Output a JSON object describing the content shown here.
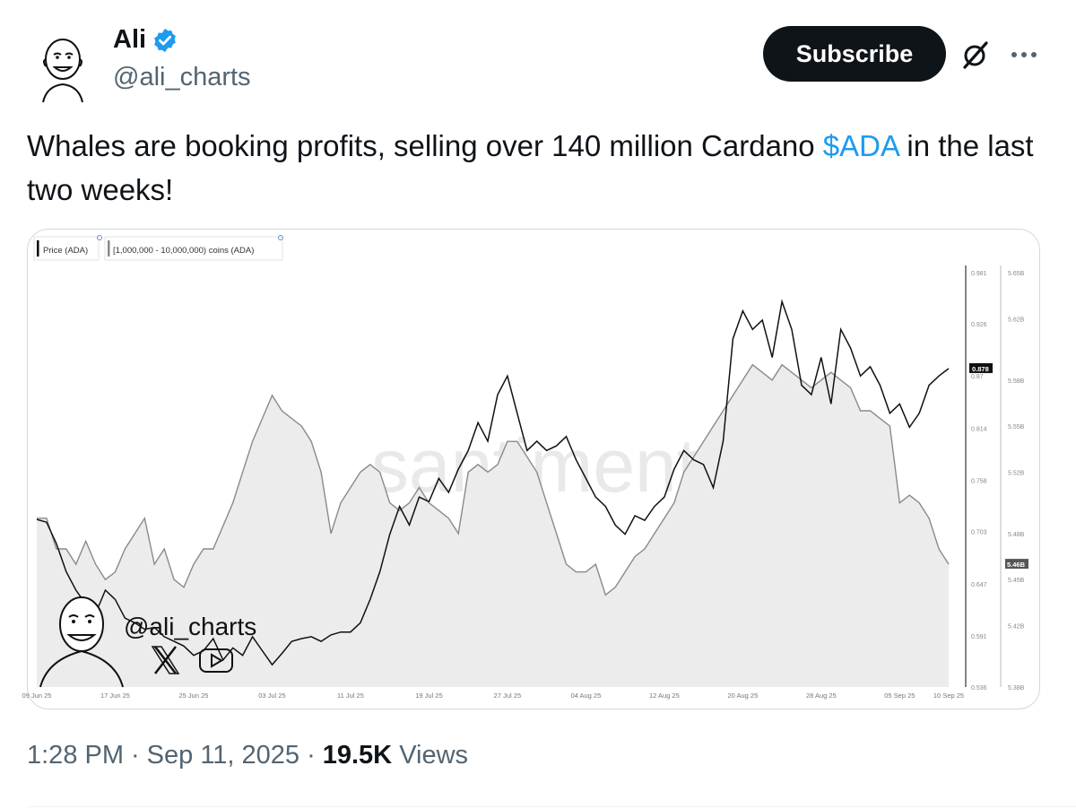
{
  "author": {
    "display_name": "Ali",
    "handle": "@ali_charts",
    "verified": true
  },
  "actions": {
    "subscribe_label": "Subscribe",
    "grok_icon": "slashed-circle-icon",
    "more_icon": "more-dots-icon"
  },
  "tweet": {
    "text_before": "Whales are booking profits, selling over 140 million Cardano ",
    "cashtag": "$ADA",
    "text_after": " in the last two weeks!",
    "time": "1:28 PM",
    "date": "Sep 11, 2025",
    "views_count": "19.5K",
    "views_label": "Views",
    "separator": "·"
  },
  "chart_data": {
    "type": "line",
    "watermark": "santiment",
    "overlay_handle": "@ali_charts",
    "legend": [
      {
        "name": "Price (ADA)",
        "color": "#000000"
      },
      {
        "name": "[1,000,000 - 10,000,000) coins (ADA)",
        "color": "#888888"
      }
    ],
    "x_ticks": [
      "09 Jun 25",
      "17 Jun 25",
      "25 Jun 25",
      "03 Jul 25",
      "11 Jul 25",
      "19 Jul 25",
      "27 Jul 25",
      "04 Aug 25",
      "12 Aug 25",
      "20 Aug 25",
      "28 Aug 25",
      "05 Sep 25",
      "10 Sep 25"
    ],
    "x_range_days": [
      0,
      93
    ],
    "y_left": {
      "ticks": [
        "0.981",
        "0.926",
        "0.87",
        "0.814",
        "0.758",
        "0.703",
        "0.647",
        "0.591",
        "0.536"
      ],
      "range": [
        0.536,
        0.981
      ],
      "current": "0.878"
    },
    "y_right": {
      "ticks": [
        "5.65B",
        "5.62B",
        "5.58B",
        "5.55B",
        "5.52B",
        "5.48B",
        "5.45B",
        "5.42B",
        "5.38B"
      ],
      "range": [
        5.38,
        5.65
      ],
      "current": "5.46B"
    },
    "series": [
      {
        "name": "Price (ADA)",
        "color": "#111111",
        "points": [
          [
            0,
            0.716
          ],
          [
            1,
            0.713
          ],
          [
            2,
            0.69
          ],
          [
            3,
            0.66
          ],
          [
            4,
            0.64
          ],
          [
            5,
            0.625
          ],
          [
            6,
            0.615
          ],
          [
            7,
            0.64
          ],
          [
            8,
            0.63
          ],
          [
            9,
            0.61
          ],
          [
            10,
            0.605
          ],
          [
            11,
            0.598
          ],
          [
            12,
            0.6
          ],
          [
            13,
            0.59
          ],
          [
            14,
            0.585
          ],
          [
            15,
            0.58
          ],
          [
            16,
            0.57
          ],
          [
            17,
            0.575
          ],
          [
            18,
            0.588
          ],
          [
            19,
            0.565
          ],
          [
            20,
            0.578
          ],
          [
            21,
            0.57
          ],
          [
            22,
            0.59
          ],
          [
            23,
            0.575
          ],
          [
            24,
            0.56
          ],
          [
            25,
            0.572
          ],
          [
            26,
            0.585
          ],
          [
            27,
            0.588
          ],
          [
            28,
            0.59
          ],
          [
            29,
            0.585
          ],
          [
            30,
            0.592
          ],
          [
            31,
            0.595
          ],
          [
            32,
            0.595
          ],
          [
            33,
            0.605
          ],
          [
            34,
            0.63
          ],
          [
            35,
            0.66
          ],
          [
            36,
            0.7
          ],
          [
            37,
            0.73
          ],
          [
            38,
            0.71
          ],
          [
            39,
            0.74
          ],
          [
            40,
            0.735
          ],
          [
            41,
            0.76
          ],
          [
            42,
            0.745
          ],
          [
            43,
            0.77
          ],
          [
            44,
            0.79
          ],
          [
            45,
            0.82
          ],
          [
            46,
            0.8
          ],
          [
            47,
            0.85
          ],
          [
            48,
            0.87
          ],
          [
            49,
            0.83
          ],
          [
            50,
            0.79
          ],
          [
            51,
            0.8
          ],
          [
            52,
            0.79
          ],
          [
            53,
            0.795
          ],
          [
            54,
            0.805
          ],
          [
            55,
            0.78
          ],
          [
            56,
            0.76
          ],
          [
            57,
            0.74
          ],
          [
            58,
            0.73
          ],
          [
            59,
            0.71
          ],
          [
            60,
            0.7
          ],
          [
            61,
            0.72
          ],
          [
            62,
            0.715
          ],
          [
            63,
            0.73
          ],
          [
            64,
            0.74
          ],
          [
            65,
            0.77
          ],
          [
            66,
            0.79
          ],
          [
            67,
            0.78
          ],
          [
            68,
            0.775
          ],
          [
            69,
            0.75
          ],
          [
            70,
            0.8
          ],
          [
            71,
            0.91
          ],
          [
            72,
            0.94
          ],
          [
            73,
            0.92
          ],
          [
            74,
            0.93
          ],
          [
            75,
            0.89
          ],
          [
            76,
            0.95
          ],
          [
            77,
            0.92
          ],
          [
            78,
            0.86
          ],
          [
            79,
            0.85
          ],
          [
            80,
            0.89
          ],
          [
            81,
            0.84
          ],
          [
            82,
            0.92
          ],
          [
            83,
            0.9
          ],
          [
            84,
            0.87
          ],
          [
            85,
            0.88
          ],
          [
            86,
            0.86
          ],
          [
            87,
            0.83
          ],
          [
            88,
            0.84
          ],
          [
            89,
            0.815
          ],
          [
            90,
            0.83
          ],
          [
            91,
            0.86
          ],
          [
            92,
            0.87
          ],
          [
            93,
            0.878
          ]
        ]
      },
      {
        "name": "[1,000,000 - 10,000,000) coins (ADA)",
        "color": "#8a8a8a",
        "points": [
          [
            0,
            5.49
          ],
          [
            1,
            5.49
          ],
          [
            2,
            5.47
          ],
          [
            3,
            5.47
          ],
          [
            4,
            5.46
          ],
          [
            5,
            5.475
          ],
          [
            6,
            5.46
          ],
          [
            7,
            5.45
          ],
          [
            8,
            5.455
          ],
          [
            9,
            5.47
          ],
          [
            10,
            5.48
          ],
          [
            11,
            5.49
          ],
          [
            12,
            5.46
          ],
          [
            13,
            5.47
          ],
          [
            14,
            5.45
          ],
          [
            15,
            5.445
          ],
          [
            16,
            5.46
          ],
          [
            17,
            5.47
          ],
          [
            18,
            5.47
          ],
          [
            19,
            5.485
          ],
          [
            20,
            5.5
          ],
          [
            21,
            5.52
          ],
          [
            22,
            5.54
          ],
          [
            23,
            5.555
          ],
          [
            24,
            5.57
          ],
          [
            25,
            5.56
          ],
          [
            26,
            5.555
          ],
          [
            27,
            5.55
          ],
          [
            28,
            5.54
          ],
          [
            29,
            5.52
          ],
          [
            30,
            5.48
          ],
          [
            31,
            5.5
          ],
          [
            32,
            5.51
          ],
          [
            33,
            5.52
          ],
          [
            34,
            5.525
          ],
          [
            35,
            5.52
          ],
          [
            36,
            5.5
          ],
          [
            37,
            5.495
          ],
          [
            38,
            5.5
          ],
          [
            39,
            5.51
          ],
          [
            40,
            5.5
          ],
          [
            41,
            5.495
          ],
          [
            42,
            5.49
          ],
          [
            43,
            5.48
          ],
          [
            44,
            5.52
          ],
          [
            45,
            5.525
          ],
          [
            46,
            5.52
          ],
          [
            47,
            5.525
          ],
          [
            48,
            5.54
          ],
          [
            49,
            5.54
          ],
          [
            50,
            5.53
          ],
          [
            51,
            5.52
          ],
          [
            52,
            5.5
          ],
          [
            53,
            5.48
          ],
          [
            54,
            5.46
          ],
          [
            55,
            5.455
          ],
          [
            56,
            5.455
          ],
          [
            57,
            5.46
          ],
          [
            58,
            5.44
          ],
          [
            59,
            5.445
          ],
          [
            60,
            5.455
          ],
          [
            61,
            5.465
          ],
          [
            62,
            5.47
          ],
          [
            63,
            5.48
          ],
          [
            64,
            5.49
          ],
          [
            65,
            5.5
          ],
          [
            66,
            5.52
          ],
          [
            67,
            5.53
          ],
          [
            68,
            5.54
          ],
          [
            69,
            5.55
          ],
          [
            70,
            5.56
          ],
          [
            71,
            5.57
          ],
          [
            72,
            5.58
          ],
          [
            73,
            5.59
          ],
          [
            74,
            5.585
          ],
          [
            75,
            5.58
          ],
          [
            76,
            5.59
          ],
          [
            77,
            5.585
          ],
          [
            78,
            5.58
          ],
          [
            79,
            5.575
          ],
          [
            80,
            5.58
          ],
          [
            81,
            5.585
          ],
          [
            82,
            5.58
          ],
          [
            83,
            5.575
          ],
          [
            84,
            5.56
          ],
          [
            85,
            5.56
          ],
          [
            86,
            5.555
          ],
          [
            87,
            5.55
          ],
          [
            88,
            5.5
          ],
          [
            89,
            5.505
          ],
          [
            90,
            5.5
          ],
          [
            91,
            5.49
          ],
          [
            92,
            5.47
          ],
          [
            93,
            5.46
          ]
        ]
      }
    ]
  }
}
